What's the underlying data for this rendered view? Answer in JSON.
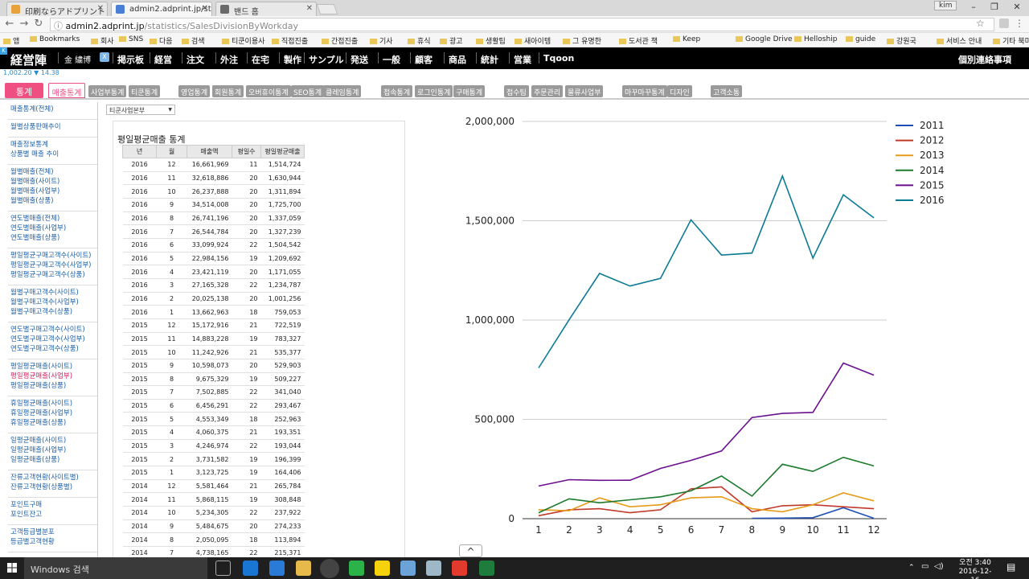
{
  "browser": {
    "tabs": [
      {
        "title": "印刷ならアドプリント",
        "color": "#e8a13d"
      },
      {
        "title": "admin2.adprint.jp/statist",
        "color": "#4a7fd6"
      },
      {
        "title": "밴드 홈",
        "color": "#6a6a6a"
      }
    ],
    "profile": "kim",
    "url_host": "admin2.adprint.jp",
    "url_path": "/statistics/SalesDivisionByWorkday",
    "bookmarks": [
      "앱",
      "Bookmarks",
      "회사",
      "SNS",
      "다음",
      "검색",
      "티쿤이용사",
      "직접진출",
      "간접진출",
      "기사",
      "휴식",
      "광고",
      "생활팁",
      "새아이템",
      "그 유명한",
      "도서관 책",
      "Keep",
      "Google Drive",
      "Helloship",
      "guide",
      "강원국",
      "서비스 안내",
      "기타 북마크"
    ]
  },
  "site": {
    "logo": "経営陣",
    "user_label": "金 繍博",
    "menu": [
      "掲示板",
      "経営",
      "注文",
      "外注",
      "在宅",
      "製作",
      "サンプル",
      "発送",
      "一般",
      "顧客",
      "商品",
      "統計",
      "営業",
      "Tqoon"
    ],
    "notice": "個別連絡事項",
    "timestamp": "1,002.20 ▼ 14.38"
  },
  "subtabs": {
    "home": "통계",
    "active": "매출통계",
    "items": [
      "사업부통계",
      "티쿤통계",
      "영업통계",
      "회원통계",
      "오버휴이통계",
      "SEO통계",
      "클레임통계",
      "접속통계",
      "로그인통계",
      "구매통계",
      "접수팀",
      "주문관리",
      "물류사업부",
      "마꾸마꾸통계",
      "디자인",
      "고객소통"
    ]
  },
  "sidebar": [
    [
      "매출통계(전체)"
    ],
    [
      "월별상품판매추이"
    ],
    [
      "매출정보통계",
      "상품별 매출 추이"
    ],
    [
      "월별매출(전체)",
      "월별매출(사이트)",
      "월별매출(사업부)",
      "월별매출(상품)"
    ],
    [
      "연도별매출(전체)",
      "연도별매출(사업부)",
      "연도별매출(상품)"
    ],
    [
      "평일평균구매고객수(사이트)",
      "평일평균구매고객수(사업부)",
      "평일평균구매고객수(상품)"
    ],
    [
      "월별구매고객수(사이트)",
      "월별구매고객수(사업부)",
      "월별구매고객수(상품)"
    ],
    [
      "연도별구매고객수(사이트)",
      "연도별구매고객수(사업부)",
      "연도별구매고객수(상품)"
    ],
    [
      "평일평균매출(사이트)",
      "평일평균매출(사업부)",
      "평일평균매출(상품)"
    ],
    [
      "휴일평균매출(사이트)",
      "휴일평균매출(사업부)",
      "휴일평균매출(상품)"
    ],
    [
      "일평균매출(사이트)",
      "일평균매출(사업부)",
      "일평균매출(상품)"
    ],
    [
      "잔류고객현황(사이트별)",
      "잔류고객현황(상품별)"
    ],
    [
      "포인트구매",
      "포인트잔고"
    ],
    [
      "고객등급별분포",
      "등급별고객현황"
    ]
  ],
  "sidebar_current": "평일평균매출(사업부)",
  "division_select": "티쿤사업본부",
  "table": {
    "title": "평일평균매출 통계",
    "headers": [
      "년",
      "월",
      "매출액",
      "평일수",
      "평일평균매출"
    ],
    "rows": [
      [
        "2016",
        "12",
        "16,661,969",
        "11",
        "1,514,724"
      ],
      [
        "2016",
        "11",
        "32,618,886",
        "20",
        "1,630,944"
      ],
      [
        "2016",
        "10",
        "26,237,888",
        "20",
        "1,311,894"
      ],
      [
        "2016",
        "9",
        "34,514,008",
        "20",
        "1,725,700"
      ],
      [
        "2016",
        "8",
        "26,741,196",
        "20",
        "1,337,059"
      ],
      [
        "2016",
        "7",
        "26,544,784",
        "20",
        "1,327,239"
      ],
      [
        "2016",
        "6",
        "33,099,924",
        "22",
        "1,504,542"
      ],
      [
        "2016",
        "5",
        "22,984,156",
        "19",
        "1,209,692"
      ],
      [
        "2016",
        "4",
        "23,421,119",
        "20",
        "1,171,055"
      ],
      [
        "2016",
        "3",
        "27,165,328",
        "22",
        "1,234,787"
      ],
      [
        "2016",
        "2",
        "20,025,138",
        "20",
        "1,001,256"
      ],
      [
        "2016",
        "1",
        "13,662,963",
        "18",
        "759,053"
      ],
      [
        "2015",
        "12",
        "15,172,916",
        "21",
        "722,519"
      ],
      [
        "2015",
        "11",
        "14,883,228",
        "19",
        "783,327"
      ],
      [
        "2015",
        "10",
        "11,242,926",
        "21",
        "535,377"
      ],
      [
        "2015",
        "9",
        "10,598,073",
        "20",
        "529,903"
      ],
      [
        "2015",
        "8",
        "9,675,329",
        "19",
        "509,227"
      ],
      [
        "2015",
        "7",
        "7,502,885",
        "22",
        "341,040"
      ],
      [
        "2015",
        "6",
        "6,456,291",
        "22",
        "293,467"
      ],
      [
        "2015",
        "5",
        "4,553,349",
        "18",
        "252,963"
      ],
      [
        "2015",
        "4",
        "4,060,375",
        "21",
        "193,351"
      ],
      [
        "2015",
        "3",
        "4,246,974",
        "22",
        "193,044"
      ],
      [
        "2015",
        "2",
        "3,731,582",
        "19",
        "196,399"
      ],
      [
        "2015",
        "1",
        "3,123,725",
        "19",
        "164,406"
      ],
      [
        "2014",
        "12",
        "5,581,464",
        "21",
        "265,784"
      ],
      [
        "2014",
        "11",
        "5,868,115",
        "19",
        "308,848"
      ],
      [
        "2014",
        "10",
        "5,234,305",
        "22",
        "237,922"
      ],
      [
        "2014",
        "9",
        "5,484,675",
        "20",
        "274,233"
      ],
      [
        "2014",
        "8",
        "2,050,095",
        "18",
        "113,894"
      ],
      [
        "2014",
        "7",
        "4,738,165",
        "22",
        "215,371"
      ]
    ]
  },
  "chart_data": {
    "type": "line",
    "x": [
      1,
      2,
      3,
      4,
      5,
      6,
      7,
      8,
      9,
      10,
      11,
      12
    ],
    "ylim": [
      0,
      2000000
    ],
    "yticks": [
      "0",
      "500,000",
      "1,000,000",
      "1,500,000",
      "2,000,000"
    ],
    "ytick_values": [
      0,
      500000,
      1000000,
      1500000,
      2000000
    ],
    "grid": true,
    "legend": "right",
    "series": [
      {
        "name": "2011",
        "color": "#1f4fb4",
        "values": [
          null,
          null,
          null,
          null,
          null,
          null,
          null,
          2000,
          3000,
          5000,
          55000,
          2000
        ]
      },
      {
        "name": "2012",
        "color": "#c0392b",
        "values": [
          15000,
          45000,
          50000,
          30000,
          45000,
          150000,
          160000,
          35000,
          65000,
          70000,
          60000,
          50000
        ]
      },
      {
        "name": "2013",
        "color": "#e69b19",
        "values": [
          45000,
          40000,
          105000,
          60000,
          70000,
          105000,
          110000,
          50000,
          35000,
          70000,
          130000,
          90000
        ]
      },
      {
        "name": "2014",
        "color": "#1b7a2b",
        "values": [
          30000,
          100000,
          80000,
          95000,
          110000,
          140000,
          215000,
          113894,
          274233,
          237922,
          308848,
          265784
        ]
      },
      {
        "name": "2015",
        "color": "#6a0f8e",
        "values": [
          164406,
          196399,
          193044,
          193351,
          252963,
          293467,
          341040,
          509227,
          529903,
          535377,
          783327,
          722519
        ]
      },
      {
        "name": "2016",
        "color": "#0b7b95",
        "values": [
          759053,
          1001256,
          1234787,
          1171055,
          1209692,
          1504542,
          1327239,
          1337059,
          1725700,
          1311894,
          1630944,
          1514724
        ]
      }
    ]
  },
  "taskbar": {
    "search": "Windows 검색",
    "time": "오전 3:40",
    "date": "2016-12-16"
  }
}
